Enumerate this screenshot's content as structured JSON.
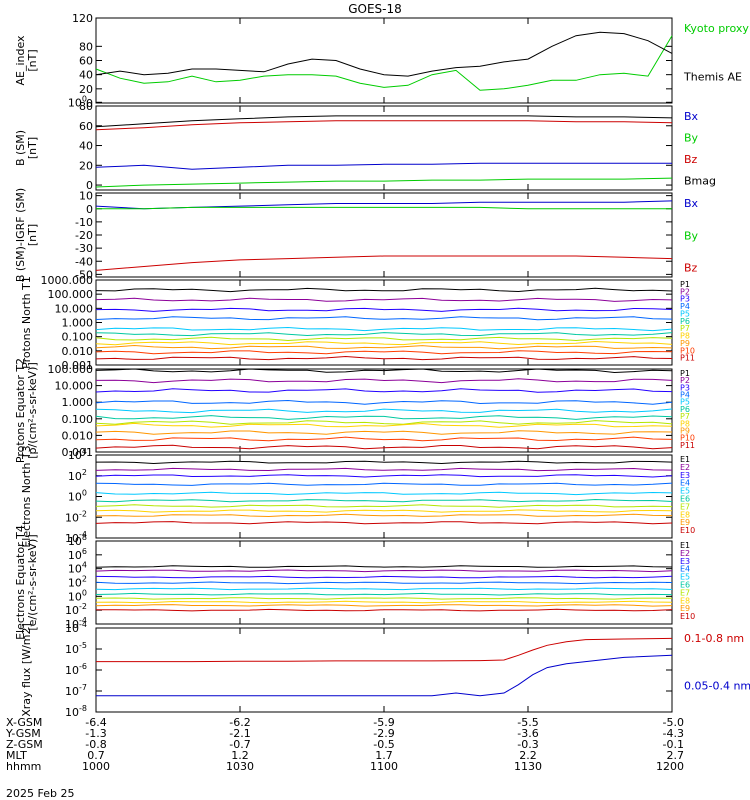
{
  "title": "GOES-18",
  "date_label": "2025 Feb 25",
  "time_axis": {
    "tick_times": [
      "1000",
      "1030",
      "1100",
      "1130",
      "1200"
    ],
    "rows": [
      {
        "label": "X-GSM",
        "values": [
          "-6.4",
          "-6.2",
          "-5.9",
          "-5.5",
          "-5.0"
        ]
      },
      {
        "label": "Y-GSM",
        "values": [
          "-1.3",
          "-2.1",
          "-2.9",
          "-3.6",
          "-4.3"
        ]
      },
      {
        "label": "Z-GSM",
        "values": [
          "-0.8",
          "-0.7",
          "-0.5",
          "-0.3",
          "-0.1"
        ]
      },
      {
        "label": "MLT",
        "values": [
          "0.7",
          "1.2",
          "1.7",
          "2.2",
          "2.7"
        ]
      },
      {
        "label": "hhmm",
        "values": [
          "1000",
          "1030",
          "1100",
          "1130",
          "1200"
        ]
      }
    ]
  },
  "colors": {
    "black": "#000000",
    "blue": "#0000cc",
    "green": "#00cc00",
    "red": "#cc0000",
    "p_channels": [
      "#000000",
      "#8b0099",
      "#2200ff",
      "#0066ff",
      "#00c8ff",
      "#00c8a0",
      "#b4e600",
      "#ffd200",
      "#ff9600",
      "#ff3c00",
      "#c80000"
    ],
    "e_channels": [
      "#000000",
      "#8b0099",
      "#2200ff",
      "#0066ff",
      "#00c8ff",
      "#00c8a0",
      "#b4e600",
      "#ffd200",
      "#ff9600",
      "#c80000"
    ]
  },
  "chart_data": [
    {
      "type": "line",
      "ylabel": "AE_index [nT]",
      "ylim": [
        0,
        120
      ],
      "y_ticks": [
        "0",
        "20",
        "40",
        "60",
        "80",
        "100",
        "120"
      ],
      "x_time_range": [
        "1000",
        "1200"
      ],
      "series": [
        {
          "name": "Kyoto proxy AE",
          "color": "#00cc00",
          "x": [
            1000,
            1005,
            1010,
            1015,
            1020,
            1025,
            1030,
            1035,
            1040,
            1045,
            1050,
            1055,
            1100,
            1105,
            1110,
            1115,
            1120,
            1125,
            1130,
            1135,
            1140,
            1145,
            1150,
            1155,
            1200
          ],
          "y": [
            48,
            35,
            28,
            30,
            38,
            30,
            32,
            38,
            40,
            40,
            38,
            28,
            22,
            25,
            40,
            46,
            18,
            20,
            25,
            32,
            32,
            40,
            42,
            38,
            95
          ]
        },
        {
          "name": "Themis AE",
          "color": "#000000",
          "x": [
            1000,
            1005,
            1010,
            1015,
            1020,
            1025,
            1030,
            1035,
            1040,
            1045,
            1050,
            1055,
            1100,
            1105,
            1110,
            1115,
            1120,
            1125,
            1130,
            1135,
            1140,
            1145,
            1150,
            1155,
            1200
          ],
          "y": [
            40,
            45,
            40,
            42,
            48,
            48,
            46,
            44,
            55,
            62,
            60,
            48,
            40,
            38,
            45,
            50,
            52,
            58,
            62,
            80,
            95,
            100,
            98,
            88,
            70
          ]
        }
      ]
    },
    {
      "type": "line",
      "ylabel": "B (SM) [nT]",
      "ylim": [
        -5,
        80
      ],
      "y_ticks": [
        "0",
        "20",
        "40",
        "60",
        "80"
      ],
      "x_time_range": [
        "1000",
        "1200"
      ],
      "series": [
        {
          "name": "Bx",
          "color": "#0000cc",
          "x": [
            1000,
            1010,
            1020,
            1030,
            1040,
            1050,
            1100,
            1110,
            1120,
            1130,
            1140,
            1150,
            1200
          ],
          "y": [
            18,
            20,
            16,
            18,
            20,
            20,
            21,
            21,
            22,
            22,
            22,
            22,
            22
          ]
        },
        {
          "name": "By",
          "color": "#00cc00",
          "x": [
            1000,
            1010,
            1020,
            1030,
            1040,
            1050,
            1100,
            1110,
            1120,
            1130,
            1140,
            1150,
            1200
          ],
          "y": [
            -2,
            0,
            1,
            2,
            3,
            4,
            4,
            5,
            5,
            6,
            6,
            6,
            7
          ]
        },
        {
          "name": "Bz",
          "color": "#cc0000",
          "x": [
            1000,
            1010,
            1020,
            1030,
            1040,
            1050,
            1100,
            1110,
            1120,
            1130,
            1140,
            1150,
            1200
          ],
          "y": [
            56,
            58,
            61,
            63,
            64,
            65,
            65,
            65,
            65,
            65,
            64,
            64,
            63
          ]
        },
        {
          "name": "Bmag",
          "color": "#000000",
          "x": [
            1000,
            1010,
            1020,
            1030,
            1040,
            1050,
            1100,
            1110,
            1120,
            1130,
            1140,
            1150,
            1200
          ],
          "y": [
            59,
            62,
            65,
            67,
            69,
            70,
            70,
            70,
            70,
            70,
            69,
            69,
            68
          ]
        }
      ]
    },
    {
      "type": "line",
      "ylabel": "B (SM)-IGRF (SM) [nT]",
      "ylim": [
        -52,
        12
      ],
      "y_ticks": [
        "-50",
        "-40",
        "-30",
        "-20",
        "-10",
        "0",
        "10"
      ],
      "x_time_range": [
        "1000",
        "1200"
      ],
      "series": [
        {
          "name": "Bx",
          "color": "#0000cc",
          "x": [
            1000,
            1010,
            1020,
            1030,
            1040,
            1050,
            1100,
            1110,
            1120,
            1130,
            1140,
            1150,
            1200
          ],
          "y": [
            2,
            0,
            1,
            2,
            3,
            4,
            4,
            4,
            5,
            5,
            5,
            5,
            6
          ]
        },
        {
          "name": "By",
          "color": "#00cc00",
          "x": [
            1000,
            1010,
            1020,
            1030,
            1040,
            1050,
            1100,
            1110,
            1120,
            1130,
            1140,
            1150,
            1200
          ],
          "y": [
            0,
            0,
            1,
            1,
            1,
            1,
            1,
            1,
            1,
            0,
            0,
            0,
            0
          ]
        },
        {
          "name": "Bz",
          "color": "#cc0000",
          "x": [
            1000,
            1010,
            1020,
            1030,
            1040,
            1050,
            1100,
            1110,
            1120,
            1130,
            1140,
            1150,
            1200
          ],
          "y": [
            -47,
            -44,
            -41,
            -39,
            -38,
            -37,
            -36,
            -36,
            -36,
            -36,
            -36,
            -37,
            -38
          ]
        }
      ]
    },
    {
      "type": "line",
      "scale": "log",
      "ylabel": "Protons North T1",
      "ylim": [
        0.001,
        1000
      ],
      "y_ticks": [
        "0.001",
        "0.010",
        "0.100",
        "1.000",
        "10.000",
        "100.000",
        "1000.000"
      ],
      "x_time_range": [
        "1000",
        "1200"
      ],
      "series": [
        {
          "name": "P1",
          "level": 200
        },
        {
          "name": "P2",
          "level": 40
        },
        {
          "name": "P3",
          "level": 8
        },
        {
          "name": "P4",
          "level": 2
        },
        {
          "name": "P5",
          "level": 0.35
        },
        {
          "name": "P6",
          "level": 0.15
        },
        {
          "name": "P7",
          "level": 0.07
        },
        {
          "name": "P8",
          "level": 0.035
        },
        {
          "name": "P9",
          "level": 0.018
        },
        {
          "name": "P10",
          "level": 0.008
        },
        {
          "name": "P11",
          "level": 0.003
        }
      ]
    },
    {
      "type": "line",
      "scale": "log",
      "ylabel": "Protons Equator T2 [p/(cm²-s-sr-keV)]",
      "ylim": [
        0.001,
        100
      ],
      "y_ticks": [
        "0.001",
        "0.010",
        "0.100",
        "1.000",
        "10.000",
        "100.000"
      ],
      "x_time_range": [
        "1000",
        "1200"
      ],
      "series": [
        {
          "name": "P1",
          "level": 80
        },
        {
          "name": "P2",
          "level": 20
        },
        {
          "name": "P3",
          "level": 5
        },
        {
          "name": "P4",
          "level": 1
        },
        {
          "name": "P5",
          "level": 0.3
        },
        {
          "name": "P6",
          "level": 0.12
        },
        {
          "name": "P7",
          "level": 0.06
        },
        {
          "name": "P8",
          "level": 0.04
        },
        {
          "name": "P9",
          "level": 0.015
        },
        {
          "name": "P10",
          "level": 0.006
        },
        {
          "name": "P11",
          "level": 0.002
        }
      ]
    },
    {
      "type": "line",
      "scale": "log",
      "ylabel": "Electrons North T3",
      "ylim": [
        0.0001,
        10000
      ],
      "y_ticks": [
        "10-4",
        "10-2",
        "100",
        "102",
        "104"
      ],
      "x_time_range": [
        "1000",
        "1200"
      ],
      "series": [
        {
          "name": "E1",
          "level": 2000
        },
        {
          "name": "E2",
          "level": 400
        },
        {
          "name": "E3",
          "level": 100
        },
        {
          "name": "E4",
          "level": 15
        },
        {
          "name": "E5",
          "level": 2
        },
        {
          "name": "E6",
          "level": 0.4
        },
        {
          "name": "E7",
          "level": 0.12
        },
        {
          "name": "E8",
          "level": 0.04
        },
        {
          "name": "E9",
          "level": 0.015
        },
        {
          "name": "E10",
          "level": 0.003
        }
      ]
    },
    {
      "type": "line",
      "scale": "log",
      "ylabel": "Electrons Equator T4 [e/(cm²-s-sr-keV)]",
      "ylim": [
        0.0001,
        100000000
      ],
      "y_ticks": [
        "10-4",
        "10-2",
        "100",
        "102",
        "104",
        "106",
        "108"
      ],
      "x_time_range": [
        "1000",
        "1200"
      ],
      "series": [
        {
          "name": "E1",
          "level": 20000
        },
        {
          "name": "E2",
          "level": 5000
        },
        {
          "name": "E3",
          "level": 600
        },
        {
          "name": "E4",
          "level": 90
        },
        {
          "name": "E5",
          "level": 12
        },
        {
          "name": "E6",
          "level": 2
        },
        {
          "name": "E7",
          "level": 0.5
        },
        {
          "name": "E8",
          "level": 0.15
        },
        {
          "name": "E9",
          "level": 0.05
        },
        {
          "name": "E10",
          "level": 0.01
        }
      ]
    },
    {
      "type": "line",
      "scale": "log",
      "ylabel": "Xray flux [W/m2]",
      "ylim": [
        1e-08,
        0.0001
      ],
      "y_ticks": [
        "10-8",
        "10-7",
        "10-6",
        "10-5",
        "10-4"
      ],
      "x_time_range": [
        "1000",
        "1200"
      ],
      "series": [
        {
          "name": "0.1-0.8 nm",
          "color": "#cc0000",
          "x": [
            1000,
            1010,
            1020,
            1030,
            1040,
            1050,
            1100,
            1110,
            1120,
            1125,
            1128,
            1131,
            1134,
            1138,
            1142,
            1150,
            1200
          ],
          "y": [
            2.5e-06,
            2.5e-06,
            2.5e-06,
            2.6e-06,
            2.6e-06,
            2.7e-06,
            2.7e-06,
            2.7e-06,
            2.8e-06,
            3e-06,
            5e-06,
            9e-06,
            1.5e-05,
            2.2e-05,
            2.8e-05,
            3e-05,
            3.2e-05
          ]
        },
        {
          "name": "0.05-0.4 nm",
          "color": "#0000cc",
          "x": [
            1000,
            1010,
            1020,
            1030,
            1040,
            1050,
            1100,
            1110,
            1115,
            1120,
            1125,
            1128,
            1131,
            1134,
            1138,
            1142,
            1150,
            1200
          ],
          "y": [
            6e-08,
            6e-08,
            6e-08,
            6e-08,
            6e-08,
            6e-08,
            6e-08,
            6e-08,
            8e-08,
            6e-08,
            8e-08,
            2e-07,
            6e-07,
            1.3e-06,
            2e-06,
            2.5e-06,
            4e-06,
            5e-06
          ]
        }
      ]
    }
  ]
}
